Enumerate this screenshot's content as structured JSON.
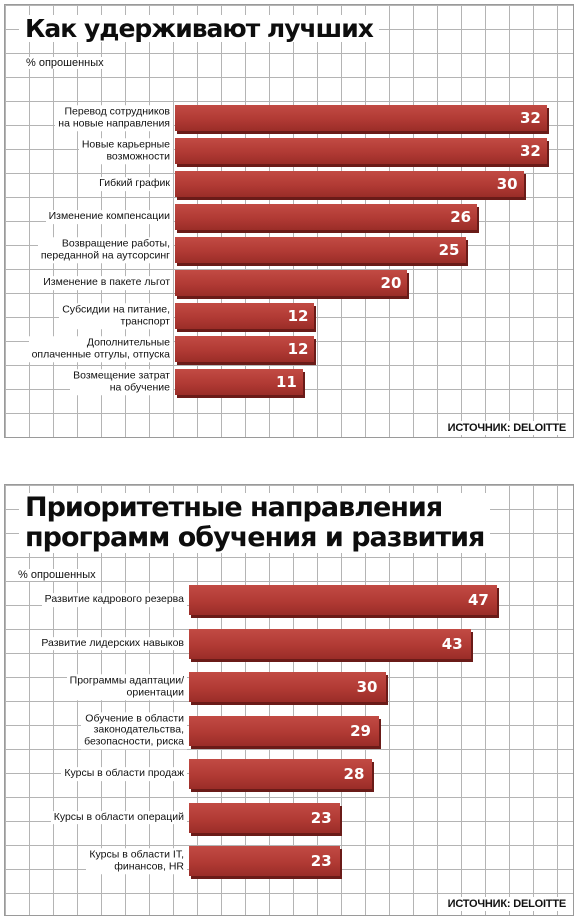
{
  "chart_data": [
    {
      "type": "bar",
      "orientation": "horizontal",
      "title": "Как удерживают лучших",
      "unit_label": "% опрошенных",
      "source": "ИСТОЧНИК: DELOITTE",
      "categories": [
        "Перевод сотрудников\nна новые направления",
        "Новые карьерные\nвозможности",
        "Гибкий график",
        "Изменение компенсации",
        "Возвращение работы,\nпереданной на аутсорсинг",
        "Изменение в пакете льгот",
        "Субсидии на питание,\nтранспорт",
        "Дополнительные\nоплаченные отгулы, отпуска",
        "Возмещение затрат\nна обучение"
      ],
      "values": [
        32,
        32,
        30,
        26,
        25,
        20,
        12,
        12,
        11
      ],
      "grid": true,
      "bar_color": "#b13a34"
    },
    {
      "type": "bar",
      "orientation": "horizontal",
      "title": "Приоритетные направления\nпрограмм обучения и развития",
      "unit_label": "% опрошенных",
      "source": "ИСТОЧНИК: DELOITTE",
      "categories": [
        "Развитие кадрового резерва",
        "Развитие лидерских навыков",
        "Программы адаптации/\nориентации",
        "Обучение в области\nзаконодательства,\nбезопасности, риска",
        "Курсы в области продаж",
        "Курсы в области операций",
        "Курсы в области IT,\nфинансов, HR"
      ],
      "values": [
        47,
        43,
        30,
        29,
        28,
        23,
        23
      ],
      "grid": true,
      "bar_color": "#b13a34"
    }
  ]
}
